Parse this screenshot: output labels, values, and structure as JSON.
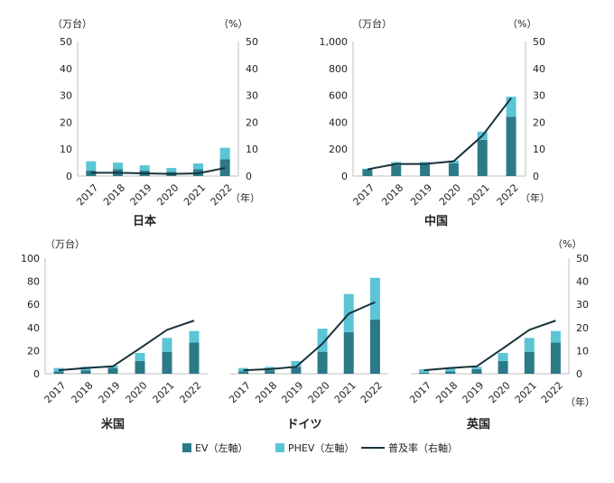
{
  "colors": {
    "ev": "#2b7a87",
    "phev": "#5bc5d6",
    "rate": "#17323a",
    "axis": "#bfbfbf"
  },
  "legend": {
    "ev": "EV（左軸）",
    "phev": "PHEV（左軸）",
    "rate": "普及率（右軸）"
  },
  "chart_data": [
    {
      "type": "bar",
      "title": "日本",
      "categories": [
        "2017",
        "2018",
        "2019",
        "2020",
        "2021",
        "2022"
      ],
      "x_unit": "（年）",
      "y_unit": "（万台）",
      "y2_unit": "（%）",
      "ylim": [
        0,
        50
      ],
      "yticks": [
        0,
        10,
        20,
        30,
        40,
        50
      ],
      "y2lim": [
        0,
        50
      ],
      "y2ticks": [
        0,
        10,
        20,
        30,
        40,
        50
      ],
      "series": [
        {
          "name": "EV（左軸）",
          "stack": true,
          "values": [
            2,
            2.5,
            2,
            1.5,
            2.5,
            6.2
          ]
        },
        {
          "name": "PHEV（左軸）",
          "stack": true,
          "values": [
            3.5,
            2.5,
            2,
            1.5,
            2.2,
            4.3
          ]
        },
        {
          "name": "普及率（右軸）",
          "axis": "right",
          "type": "line",
          "values": [
            1.2,
            1.2,
            1.0,
            0.8,
            1.0,
            3.0
          ]
        }
      ]
    },
    {
      "type": "bar",
      "title": "中国",
      "categories": [
        "2017",
        "2018",
        "2019",
        "2020",
        "2021",
        "2022"
      ],
      "x_unit": "（年）",
      "y_unit": "（万台）",
      "y2_unit": "（%）",
      "ylim": [
        0,
        1000
      ],
      "yticks": [
        0,
        200,
        400,
        600,
        800,
        1000
      ],
      "yticklabels": [
        "0",
        "200",
        "400",
        "600",
        "800",
        "1,000"
      ],
      "y2lim": [
        0,
        50
      ],
      "y2ticks": [
        0,
        10,
        20,
        30,
        40,
        50
      ],
      "series": [
        {
          "name": "EV（左軸）",
          "stack": true,
          "values": [
            50,
            80,
            85,
            95,
            270,
            440
          ]
        },
        {
          "name": "PHEV（左軸）",
          "stack": true,
          "values": [
            5,
            25,
            20,
            20,
            60,
            150
          ]
        },
        {
          "name": "普及率（右軸）",
          "axis": "right",
          "type": "line",
          "values": [
            2.5,
            4.5,
            4.5,
            5.5,
            15,
            29
          ]
        }
      ]
    },
    {
      "type": "bar",
      "title": "米国",
      "categories": [
        "2017",
        "2018",
        "2019",
        "2020",
        "2021",
        "2022"
      ],
      "ylim": [
        0,
        100
      ],
      "yticks": [
        0,
        20,
        40,
        60,
        80,
        100
      ],
      "y_unit": "（万台）",
      "y2lim": [
        0,
        50
      ],
      "series": [
        {
          "name": "EV（左軸）",
          "stack": true,
          "values": [
            2,
            3,
            5,
            11,
            19,
            27
          ]
        },
        {
          "name": "PHEV（左軸）",
          "stack": true,
          "values": [
            3,
            3,
            2,
            7,
            12,
            10
          ]
        },
        {
          "name": "普及率（右軸）",
          "axis": "right",
          "type": "line",
          "values": [
            1.5,
            2.5,
            3.2,
            11,
            19,
            23
          ]
        }
      ]
    },
    {
      "type": "bar",
      "title": "ドイツ",
      "categories": [
        "2017",
        "2018",
        "2019",
        "2020",
        "2021",
        "2022"
      ],
      "ylim": [
        0,
        100
      ],
      "y2lim": [
        0,
        50
      ],
      "series": [
        {
          "name": "EV（左軸）",
          "stack": true,
          "values": [
            2,
            3,
            6,
            19,
            36,
            47
          ]
        },
        {
          "name": "PHEV（左軸）",
          "stack": true,
          "values": [
            3,
            3,
            5,
            20,
            33,
            36
          ]
        },
        {
          "name": "普及率（右軸）",
          "axis": "right",
          "type": "line",
          "values": [
            1.5,
            2,
            3,
            13,
            26,
            31
          ]
        }
      ]
    },
    {
      "type": "bar",
      "title": "英国",
      "categories": [
        "2017",
        "2018",
        "2019",
        "2020",
        "2021",
        "2022"
      ],
      "x_unit": "（年）",
      "y2_unit": "（%）",
      "ylim": [
        0,
        100
      ],
      "y2lim": [
        0,
        50
      ],
      "y2ticks": [
        0,
        10,
        20,
        30,
        40,
        50
      ],
      "series": [
        {
          "name": "EV（左軸）",
          "stack": true,
          "values": [
            1,
            2,
            4,
            11,
            19,
            27
          ]
        },
        {
          "name": "PHEV（左軸）",
          "stack": true,
          "values": [
            3,
            3,
            2,
            7,
            12,
            10
          ]
        },
        {
          "name": "普及率（右軸）",
          "axis": "right",
          "type": "line",
          "values": [
            1.5,
            2.5,
            3.2,
            11,
            19,
            23
          ]
        }
      ]
    }
  ]
}
